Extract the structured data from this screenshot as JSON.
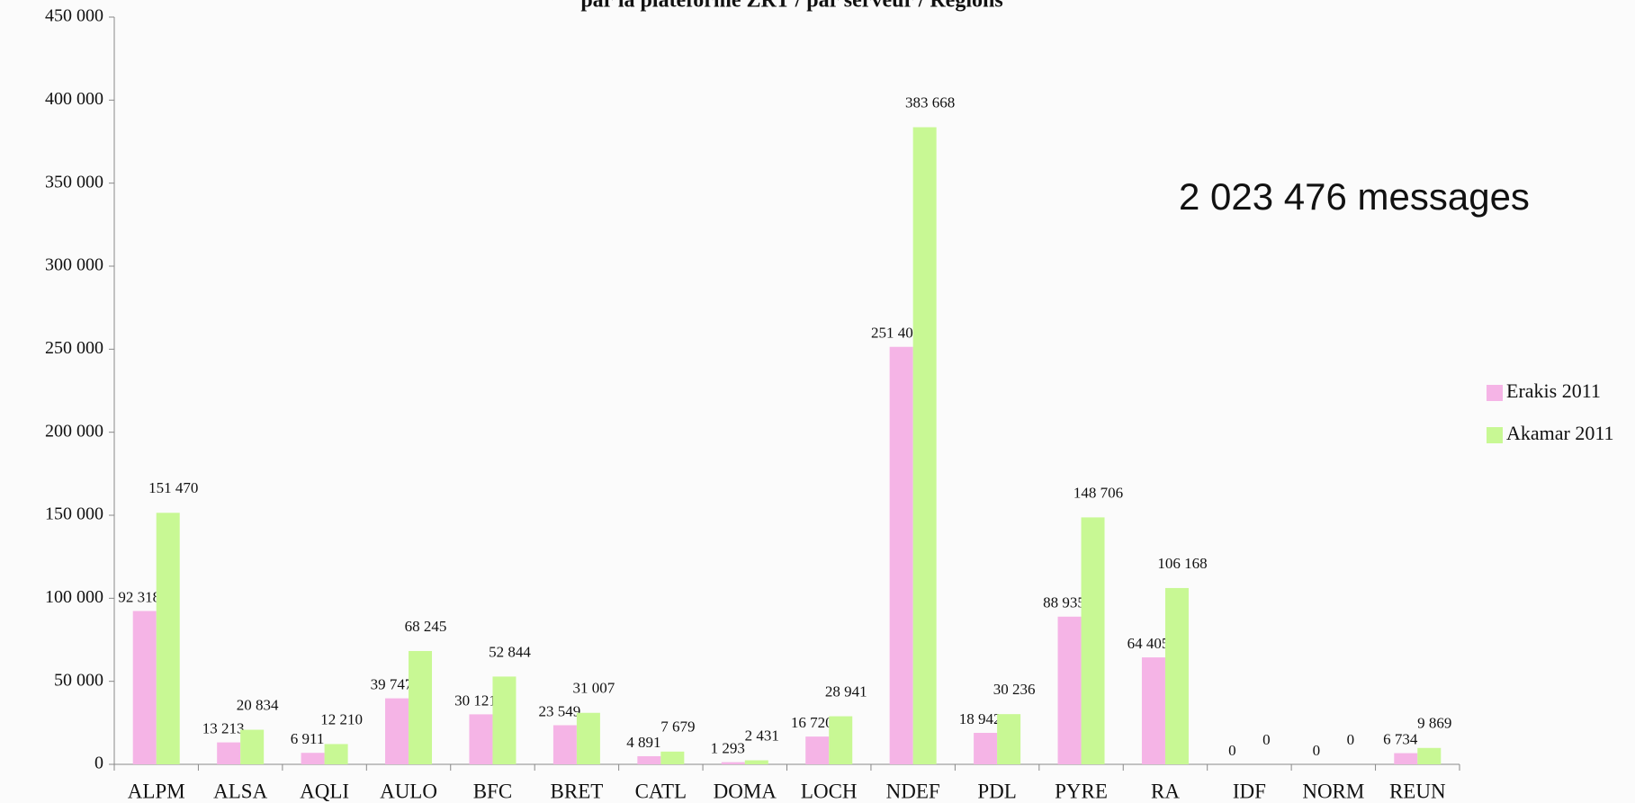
{
  "chart_data": {
    "type": "bar",
    "title": "par la plateforme ZRT / par serveur / Régions",
    "annotation": "2 023 476 messages",
    "categories": [
      "ALPM",
      "ALSA",
      "AQLI",
      "AULO",
      "BFC",
      "BRET",
      "CATL",
      "DOMA",
      "LOCH",
      "NDEF",
      "PDL",
      "PYRE",
      "RA",
      "IDF",
      "NORM",
      "REUN"
    ],
    "series": [
      {
        "name": "Erakis 2011",
        "color": "#f5b4e6",
        "values": [
          92318,
          13213,
          6911,
          39747,
          30121,
          23549,
          4891,
          1293,
          16720,
          251408,
          18942,
          88935,
          64405,
          0,
          0,
          6734
        ],
        "value_labels": [
          "92 318",
          "13 213",
          "6 911",
          "39 747",
          "30 121",
          "23 549",
          "4 891",
          "1 293",
          "16 720",
          "251 408",
          "18 942",
          "88 935",
          "64 405",
          "0",
          "0",
          "6 734"
        ]
      },
      {
        "name": "Akamar 2011",
        "color": "#c8f894",
        "values": [
          151470,
          20834,
          12210,
          68245,
          52844,
          31007,
          7679,
          2431,
          28941,
          383668,
          30236,
          148706,
          106168,
          0,
          0,
          9869
        ],
        "value_labels": [
          "151 470",
          "20 834",
          "12 210",
          "68 245",
          "52 844",
          "31 007",
          "7 679",
          "2 431",
          "28 941",
          "383 668",
          "30 236",
          "148 706",
          "106 168",
          "0",
          "0",
          "9 869"
        ]
      }
    ],
    "ylim": [
      0,
      450000
    ],
    "yticks": [
      0,
      {
        "value": 50000,
        "label": "50 000"
      },
      {
        "value": 100000,
        "label": "100 000"
      },
      {
        "value": 150000,
        "label": "150 000"
      },
      {
        "value": 200000,
        "label": "200 000"
      },
      {
        "value": 250000,
        "label": "250 000"
      },
      {
        "value": 300000,
        "label": "300 000"
      },
      {
        "value": 350000,
        "label": "350 000"
      },
      {
        "value": 400000,
        "label": "400 000"
      },
      {
        "value": 450000,
        "label": "450 000"
      }
    ],
    "legend": "right"
  }
}
